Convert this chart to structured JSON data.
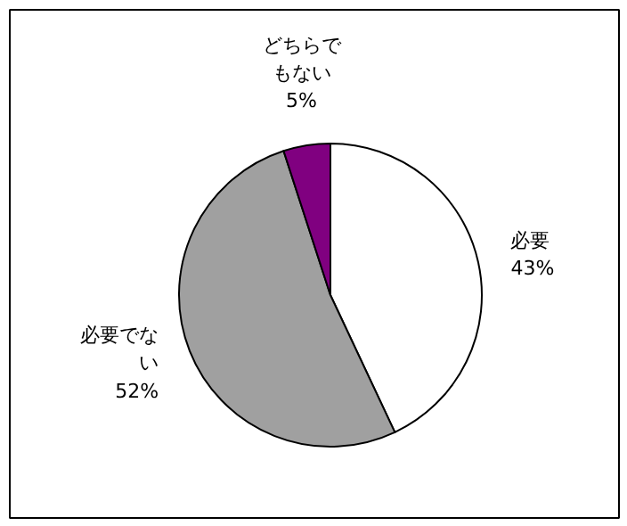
{
  "chart_data": {
    "type": "pie",
    "categories": [
      "必要",
      "必要でない",
      "どちらでもない"
    ],
    "values": [
      43,
      52,
      5
    ],
    "colors": [
      "#ffffff",
      "#a0a0a0",
      "#800080"
    ],
    "value_labels": [
      "43%",
      "52%",
      "5%"
    ]
  }
}
